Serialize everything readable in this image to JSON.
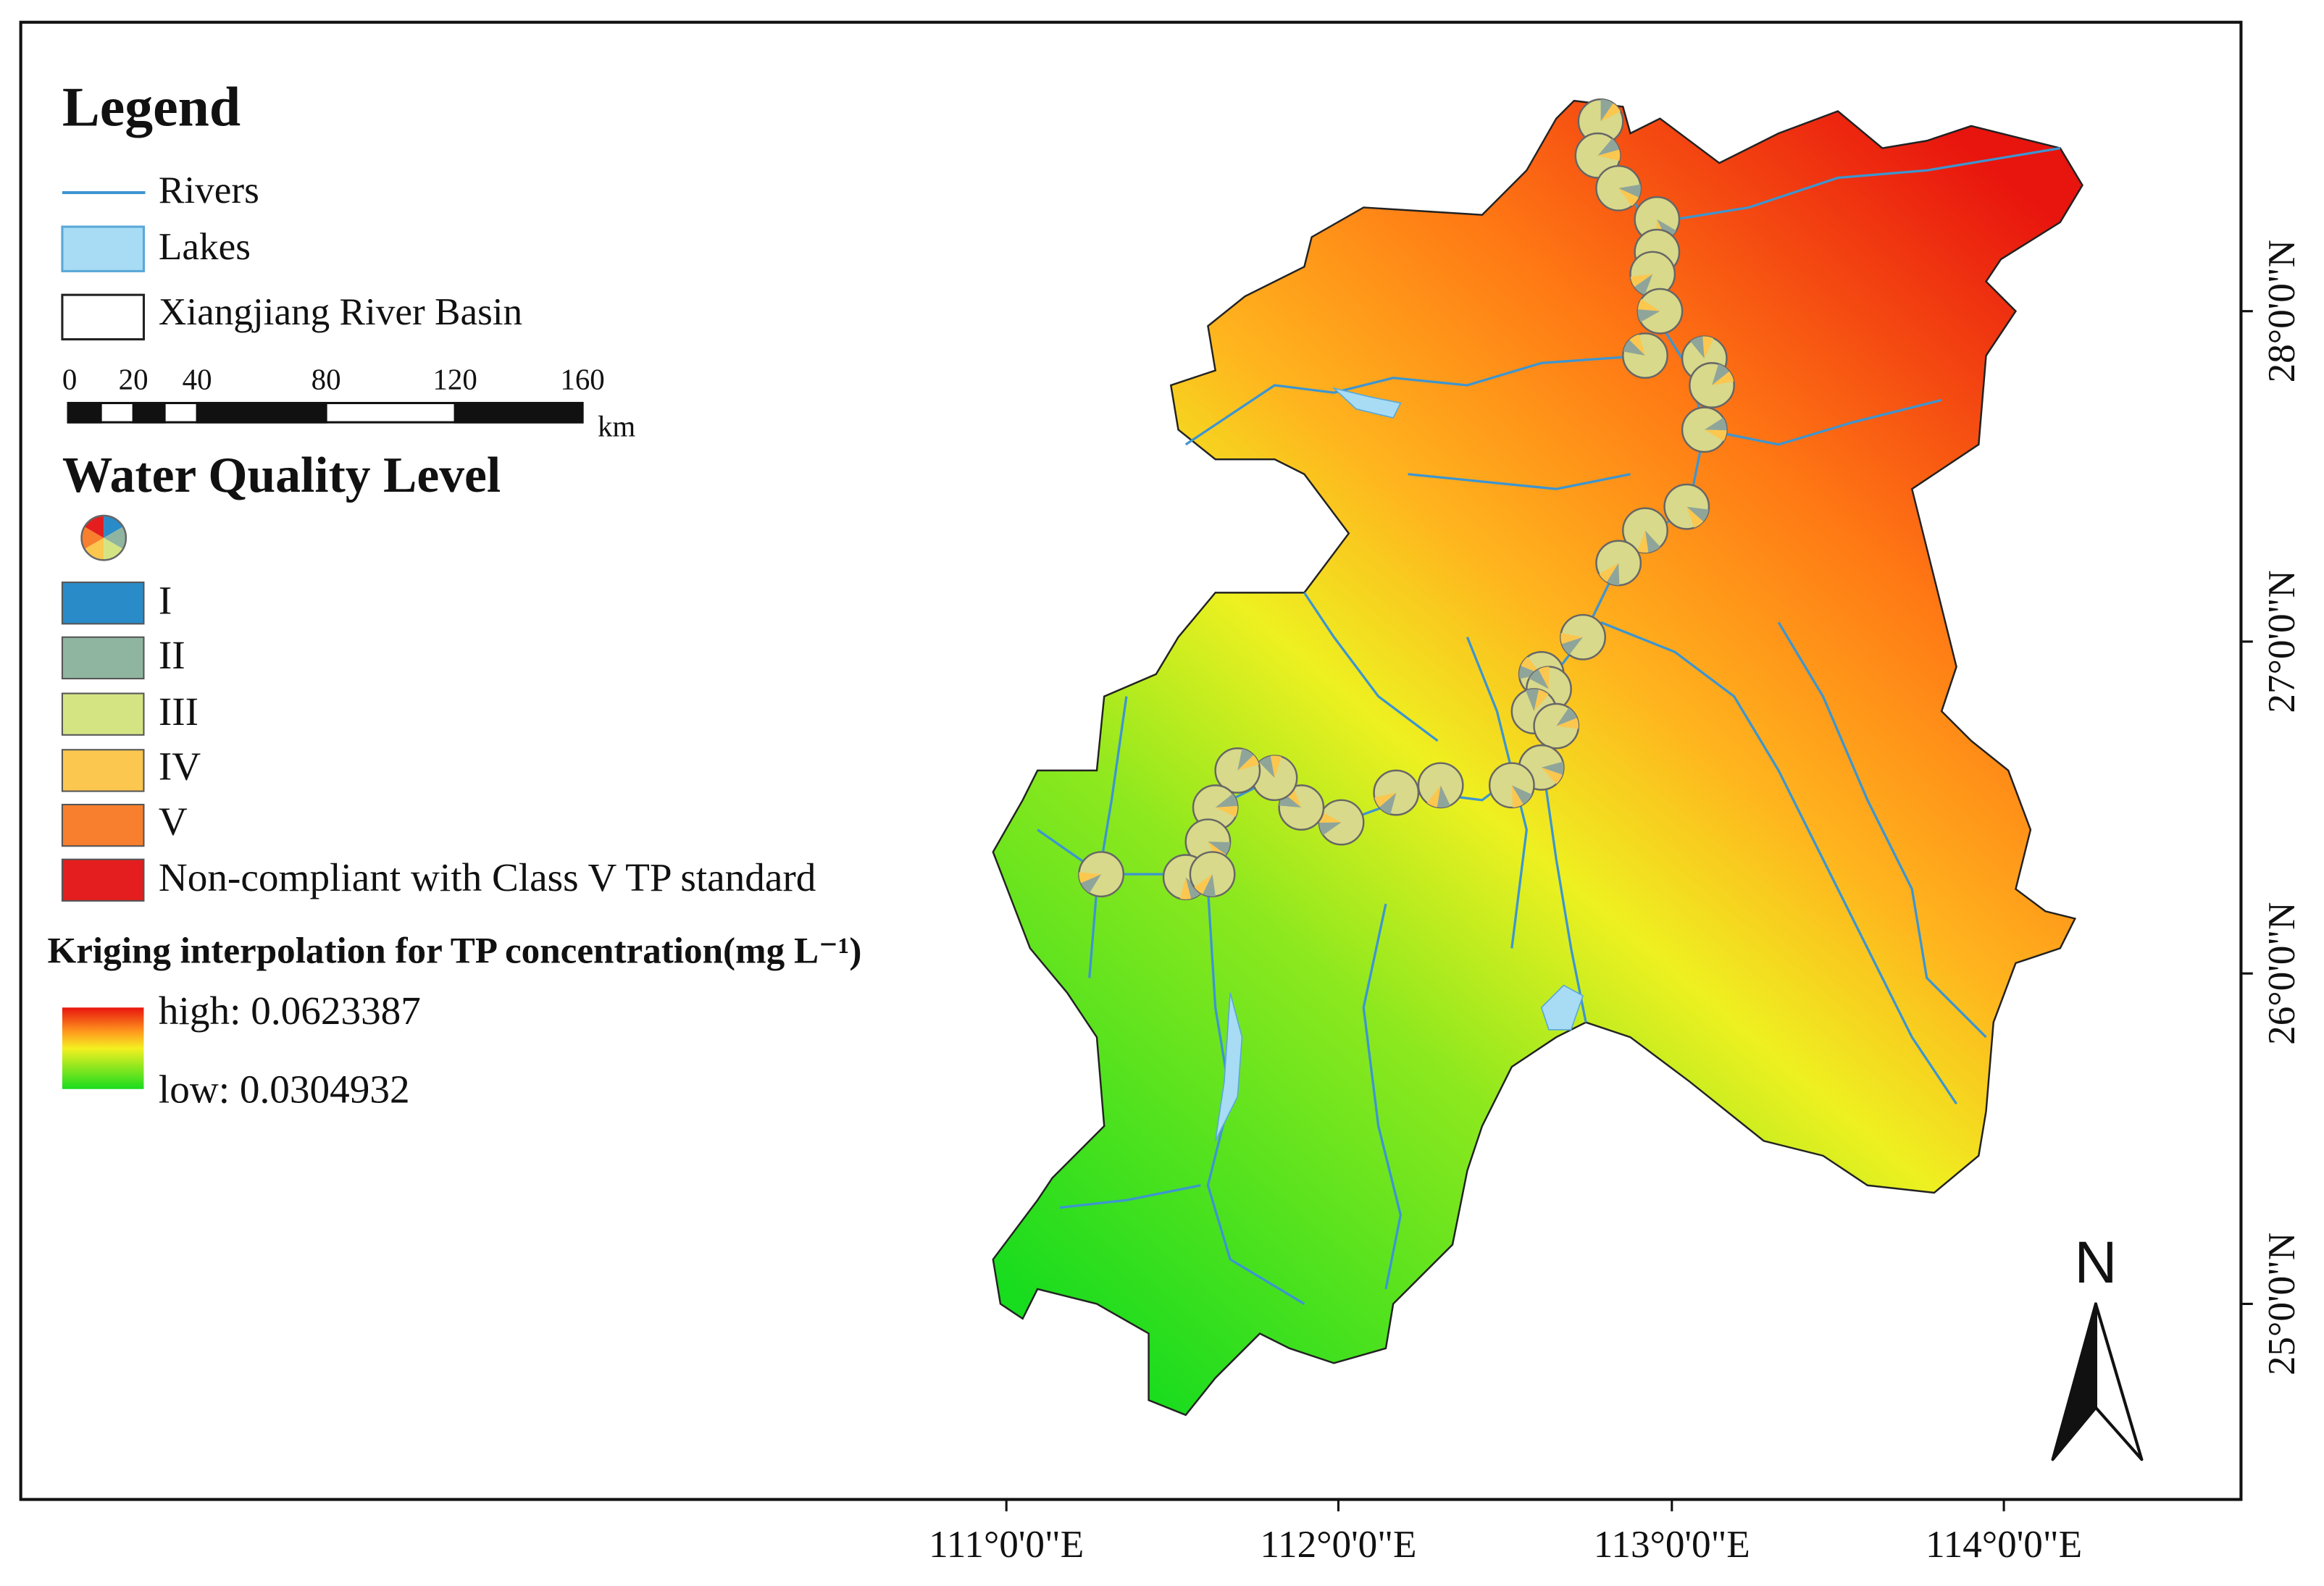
{
  "legend": {
    "title": "Legend",
    "items": [
      "Rivers",
      "Lakes",
      "Xiangjiang River Basin"
    ],
    "scale_bar": {
      "ticks": [
        "0",
        "20",
        "40",
        "80",
        "120",
        "160"
      ],
      "unit": "km"
    }
  },
  "water_quality": {
    "title": "Water Quality Level",
    "classes": [
      "I",
      "II",
      "III",
      "IV",
      "V",
      "Non-compliant with Class V TP standard"
    ]
  },
  "kriging": {
    "title": "Kriging interpolation for TP concentration(mg L⁻¹)",
    "high": "high: 0.0623387",
    "low": "low: 0.0304932"
  },
  "axes": {
    "longitude": [
      "111°0'0\"E",
      "112°0'0\"E",
      "113°0'0\"E",
      "114°0'0\"E"
    ],
    "latitude": [
      "28°0'0\"N",
      "27°0'0\"N",
      "26°0'0\"N",
      "25°0'0\"N"
    ]
  },
  "north": "N"
}
